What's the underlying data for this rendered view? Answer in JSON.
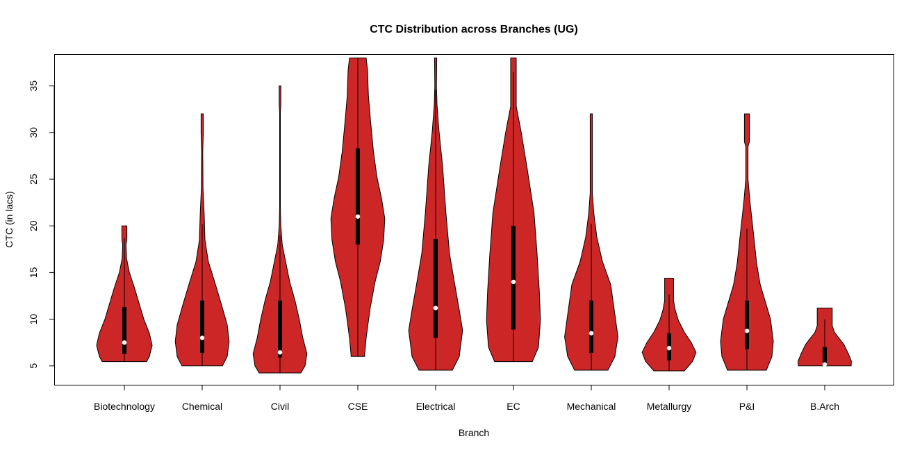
{
  "chart_data": {
    "type": "violin",
    "title": "CTC Distribution across Branches (UG)",
    "xlabel": "Branch",
    "ylabel": "CTC (in lacs)",
    "ylim": [
      2.9,
      38.4
    ],
    "yticks": [
      5,
      10,
      15,
      20,
      25,
      30,
      35
    ],
    "grid": false,
    "colors": {
      "fill": "#CD2626",
      "outline": "#000000",
      "box": "#000000",
      "median": "#FFFFFF"
    },
    "categories": [
      "Biotechnology",
      "Chemical",
      "Civil",
      "CSE",
      "Electrical",
      "EC",
      "Mechanical",
      "Metallurgy",
      "P&I",
      "B.Arch"
    ],
    "violins": [
      {
        "min": 5.46,
        "max": 20,
        "q1": 6.3,
        "median": 7.5,
        "q3": 11.3,
        "whisker_high": 18.7,
        "density": [
          [
            5.46,
            0.8
          ],
          [
            6,
            0.9
          ],
          [
            7.2,
            1.0
          ],
          [
            8.5,
            0.9
          ],
          [
            10,
            0.7
          ],
          [
            12,
            0.5
          ],
          [
            13.5,
            0.35
          ],
          [
            15,
            0.18
          ],
          [
            16.5,
            0.08
          ],
          [
            18,
            0.06
          ],
          [
            18.5,
            0.09
          ],
          [
            20,
            0.09
          ]
        ]
      },
      {
        "min": 5.0,
        "max": 32,
        "q1": 6.4,
        "median": 8.0,
        "q3": 12,
        "whisker_high": 20.2,
        "density": [
          [
            5,
            0.73
          ],
          [
            6,
            0.9
          ],
          [
            7.6,
            0.97
          ],
          [
            9.4,
            0.9
          ],
          [
            11.5,
            0.7
          ],
          [
            13.7,
            0.48
          ],
          [
            16.2,
            0.22
          ],
          [
            18.5,
            0.1
          ],
          [
            21.4,
            0.07
          ],
          [
            24,
            0.03
          ],
          [
            28,
            0.02
          ],
          [
            30,
            0.04
          ],
          [
            32,
            0.04
          ]
        ]
      },
      {
        "min": 4.24,
        "max": 35,
        "q1": 5.9,
        "median": 6.45,
        "q3": 12,
        "whisker_high": 19,
        "density": [
          [
            4.24,
            0.75
          ],
          [
            5,
            0.9
          ],
          [
            6.3,
            0.97
          ],
          [
            8,
            0.82
          ],
          [
            9.9,
            0.7
          ],
          [
            12,
            0.54
          ],
          [
            14,
            0.35
          ],
          [
            16.2,
            0.2
          ],
          [
            18,
            0.08
          ],
          [
            20,
            0.03
          ],
          [
            22,
            0.012
          ],
          [
            32,
            0.012
          ],
          [
            33,
            0.03
          ],
          [
            35,
            0.03
          ]
        ]
      },
      {
        "min": 6.0,
        "max": 38,
        "q1": 18.0,
        "median": 21.0,
        "q3": 28.3,
        "whisker_high": 38,
        "density": [
          [
            6,
            0.24
          ],
          [
            8,
            0.3
          ],
          [
            11.1,
            0.44
          ],
          [
            14,
            0.62
          ],
          [
            16.2,
            0.81
          ],
          [
            18.5,
            0.93
          ],
          [
            20.8,
            0.97
          ],
          [
            23,
            0.85
          ],
          [
            25.2,
            0.69
          ],
          [
            28,
            0.56
          ],
          [
            31.5,
            0.45
          ],
          [
            34,
            0.38
          ],
          [
            36.7,
            0.35
          ],
          [
            38,
            0.3
          ]
        ]
      },
      {
        "min": 4.54,
        "max": 38,
        "q1": 8.0,
        "median": 11.2,
        "q3": 18.6,
        "whisker_high": 34.6,
        "density": [
          [
            4.54,
            0.6
          ],
          [
            6,
            0.85
          ],
          [
            8.8,
            0.97
          ],
          [
            11,
            0.85
          ],
          [
            13.7,
            0.69
          ],
          [
            17,
            0.5
          ],
          [
            21.4,
            0.37
          ],
          [
            26.4,
            0.25
          ],
          [
            30.2,
            0.12
          ],
          [
            33,
            0.05
          ],
          [
            35,
            0.03
          ],
          [
            38,
            0.04
          ]
        ]
      },
      {
        "min": 5.46,
        "max": 38,
        "q1": 8.9,
        "median": 14.0,
        "q3": 20.0,
        "whisker_high": 36.5,
        "density": [
          [
            5.46,
            0.68
          ],
          [
            7,
            0.9
          ],
          [
            9.9,
            0.97
          ],
          [
            13,
            0.93
          ],
          [
            17,
            0.85
          ],
          [
            21.4,
            0.74
          ],
          [
            26.4,
            0.48
          ],
          [
            30.2,
            0.27
          ],
          [
            32.8,
            0.1
          ],
          [
            34,
            0.1
          ],
          [
            38,
            0.1
          ]
        ]
      },
      {
        "min": 4.54,
        "max": 32,
        "q1": 6.4,
        "median": 8.5,
        "q3": 12,
        "whisker_high": 20.2,
        "density": [
          [
            4.54,
            0.6
          ],
          [
            6,
            0.85
          ],
          [
            8.1,
            0.96
          ],
          [
            10.5,
            0.85
          ],
          [
            13.7,
            0.7
          ],
          [
            16.2,
            0.4
          ],
          [
            18.8,
            0.2
          ],
          [
            21.4,
            0.09
          ],
          [
            23.5,
            0.04
          ],
          [
            32,
            0.04
          ]
        ]
      },
      {
        "min": 4.46,
        "max": 14.4,
        "q1": 5.6,
        "median": 6.9,
        "q3": 8.5,
        "whisker_high": 12.65,
        "density": [
          [
            4.46,
            0.55
          ],
          [
            5.5,
            0.85
          ],
          [
            6.45,
            0.97
          ],
          [
            7.5,
            0.8
          ],
          [
            8.6,
            0.55
          ],
          [
            9.9,
            0.33
          ],
          [
            11,
            0.22
          ],
          [
            12,
            0.16
          ],
          [
            14.4,
            0.16
          ]
        ]
      },
      {
        "min": 4.54,
        "max": 32,
        "q1": 6.8,
        "median": 8.75,
        "q3": 12,
        "whisker_high": 19.7,
        "density": [
          [
            4.54,
            0.7
          ],
          [
            6,
            0.9
          ],
          [
            7.6,
            0.95
          ],
          [
            10,
            0.85
          ],
          [
            13.7,
            0.48
          ],
          [
            16,
            0.35
          ],
          [
            18.8,
            0.25
          ],
          [
            22.6,
            0.11
          ],
          [
            25,
            0.04
          ],
          [
            28.5,
            0.04
          ],
          [
            29,
            0.09
          ],
          [
            32,
            0.09
          ]
        ]
      },
      {
        "min": 5.0,
        "max": 11.2,
        "q1": 5.0,
        "median": 5.15,
        "q3": 7.0,
        "whisker_high": 10.0,
        "density": [
          [
            5,
            0.95
          ],
          [
            5.5,
            0.96
          ],
          [
            6.3,
            0.85
          ],
          [
            7.3,
            0.69
          ],
          [
            8.6,
            0.35
          ],
          [
            9.3,
            0.27
          ],
          [
            11.2,
            0.27
          ]
        ]
      }
    ]
  }
}
